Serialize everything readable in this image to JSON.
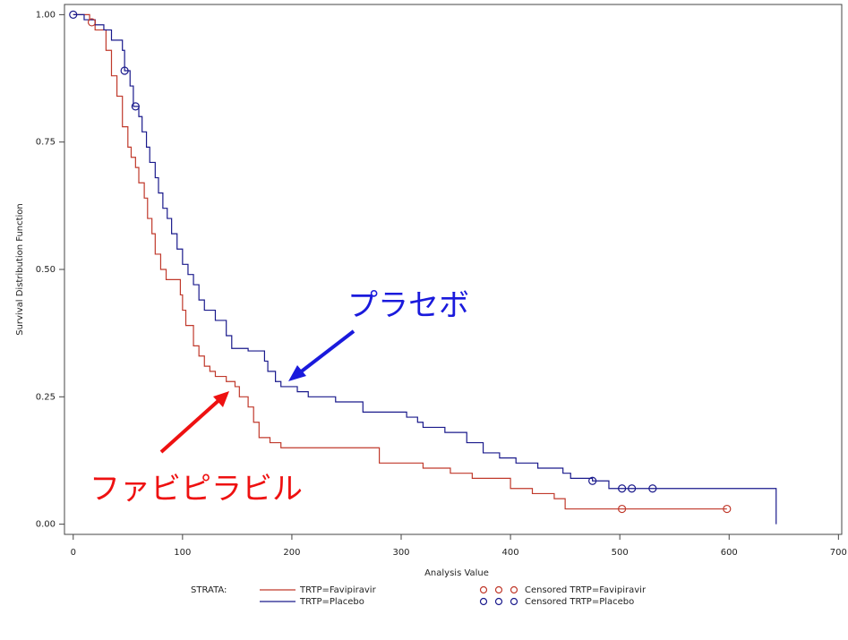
{
  "chart_data": {
    "type": "step",
    "xlabel": "Analysis Value",
    "ylabel": "Survival Distribution Function",
    "xlim": [
      -8,
      703
    ],
    "ylim": [
      -0.02,
      1.02
    ],
    "xticks": [
      0,
      100,
      200,
      300,
      400,
      500,
      600,
      700
    ],
    "yticks": [
      {
        "value": 0,
        "label": "0.00"
      },
      {
        "value": 0.25,
        "label": "0.25"
      },
      {
        "value": 0.5,
        "label": "0.50"
      },
      {
        "value": 0.75,
        "label": "0.75"
      },
      {
        "value": 1,
        "label": "1.00"
      }
    ],
    "legend_title": "STRATA:",
    "series": [
      {
        "name": "TRTP=Favipiravir",
        "color": "#c0392b",
        "x": [
          0,
          15,
          20,
          30,
          35,
          40,
          45,
          50,
          53,
          57,
          60,
          65,
          68,
          72,
          75,
          80,
          85,
          98,
          100,
          103,
          110,
          115,
          120,
          125,
          130,
          140,
          148,
          152,
          160,
          165,
          170,
          180,
          190,
          280,
          320,
          345,
          365,
          400,
          420,
          440,
          450,
          598
        ],
        "values": [
          1.0,
          0.99,
          0.97,
          0.93,
          0.88,
          0.84,
          0.78,
          0.74,
          0.72,
          0.7,
          0.67,
          0.64,
          0.6,
          0.57,
          0.53,
          0.5,
          0.48,
          0.45,
          0.42,
          0.39,
          0.35,
          0.33,
          0.31,
          0.3,
          0.29,
          0.28,
          0.27,
          0.25,
          0.23,
          0.2,
          0.17,
          0.16,
          0.15,
          0.12,
          0.11,
          0.1,
          0.09,
          0.07,
          0.06,
          0.05,
          0.03,
          0.03
        ]
      },
      {
        "name": "TRTP=Placebo",
        "color": "#1a1a8c",
        "x": [
          0,
          10,
          20,
          28,
          35,
          45,
          47,
          52,
          55,
          60,
          63,
          67,
          70,
          75,
          78,
          82,
          86,
          90,
          95,
          100,
          105,
          110,
          115,
          120,
          130,
          140,
          145,
          160,
          175,
          178,
          185,
          190,
          205,
          215,
          240,
          265,
          305,
          315,
          320,
          340,
          360,
          375,
          390,
          405,
          425,
          448,
          455,
          475,
          490,
          643
        ],
        "values": [
          1.0,
          0.99,
          0.98,
          0.97,
          0.95,
          0.93,
          0.89,
          0.86,
          0.82,
          0.8,
          0.77,
          0.74,
          0.71,
          0.68,
          0.65,
          0.62,
          0.6,
          0.57,
          0.54,
          0.51,
          0.49,
          0.47,
          0.44,
          0.42,
          0.4,
          0.37,
          0.345,
          0.34,
          0.32,
          0.3,
          0.28,
          0.27,
          0.26,
          0.25,
          0.24,
          0.22,
          0.21,
          0.2,
          0.19,
          0.18,
          0.16,
          0.14,
          0.13,
          0.12,
          0.11,
          0.1,
          0.09,
          0.085,
          0.07,
          0.0
        ]
      }
    ],
    "censored": [
      {
        "name": "Censored TRTP=Favipiravir",
        "color": "#c0392b",
        "x": [
          17,
          502,
          598
        ],
        "values": [
          0.985,
          0.03,
          0.03
        ]
      },
      {
        "name": "Censored TRTP=Placebo",
        "color": "#1a1a8c",
        "x": [
          0,
          47,
          57,
          475,
          502,
          511,
          530
        ],
        "values": [
          1.0,
          0.89,
          0.82,
          0.085,
          0.07,
          0.07,
          0.07
        ]
      }
    ],
    "annotations": [
      {
        "text": "プラセボ",
        "color": "#1a1adc"
      },
      {
        "text": "ファビピラビル",
        "color": "#ee1111"
      }
    ]
  }
}
